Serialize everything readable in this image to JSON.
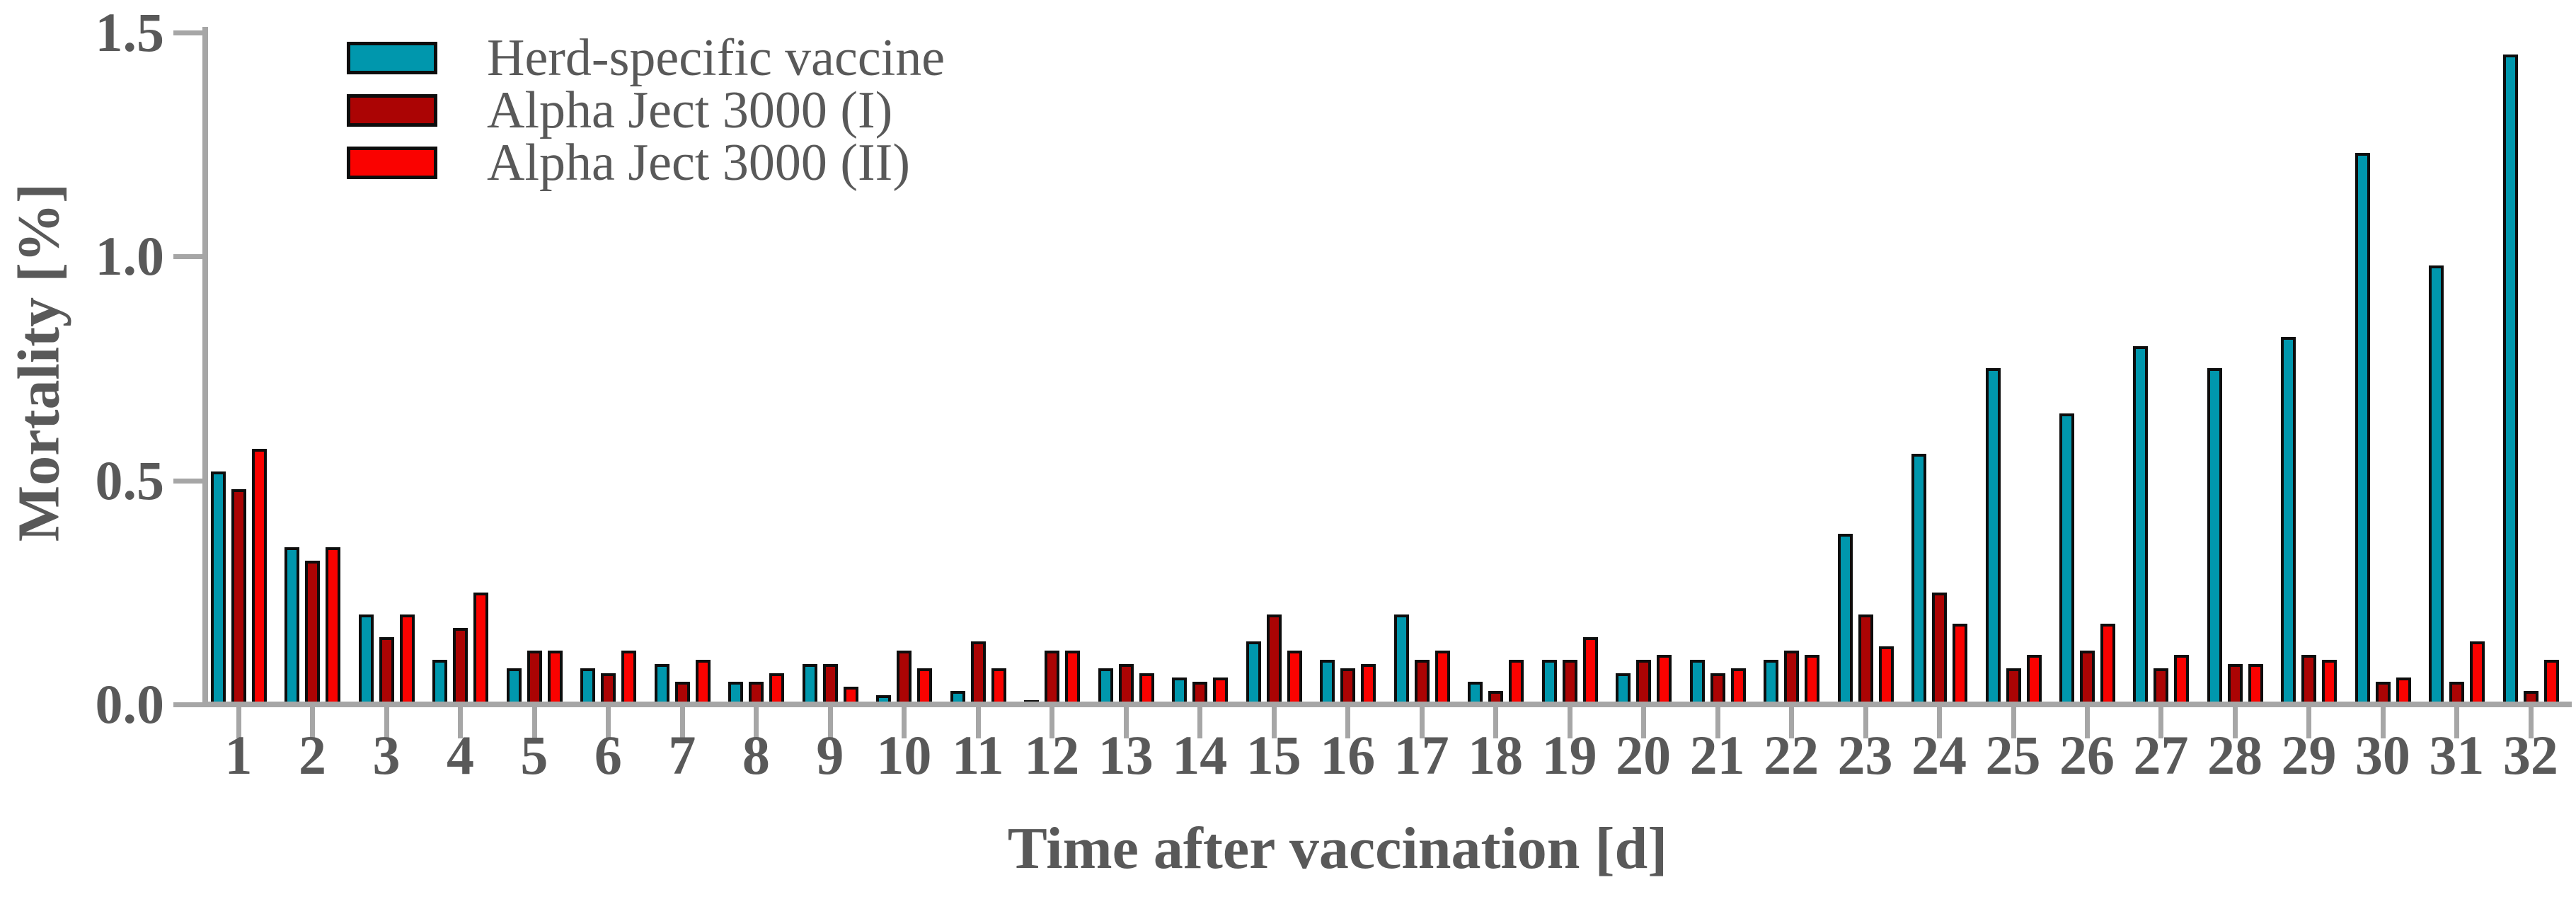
{
  "chart_data": {
    "type": "bar",
    "title": "",
    "xlabel": "Time after vaccination [d]",
    "ylabel": "Mortality [%]",
    "categories": [
      "1",
      "2",
      "3",
      "4",
      "5",
      "6",
      "7",
      "8",
      "9",
      "10",
      "11",
      "12",
      "13",
      "14",
      "15",
      "16",
      "17",
      "18",
      "19",
      "20",
      "21",
      "22",
      "23",
      "24",
      "25",
      "26",
      "27",
      "28",
      "29",
      "30",
      "31",
      "32"
    ],
    "series": [
      {
        "name": "Herd-specific vaccine",
        "color": "#0097ad",
        "values": [
          0.52,
          0.35,
          0.2,
          0.1,
          0.08,
          0.08,
          0.09,
          0.05,
          0.09,
          0.02,
          0.03,
          0.01,
          0.08,
          0.06,
          0.14,
          0.1,
          0.2,
          0.05,
          0.1,
          0.07,
          0.1,
          0.1,
          0.38,
          0.56,
          0.75,
          0.65,
          0.8,
          0.75,
          0.82,
          1.23,
          0.98,
          1.45
        ]
      },
      {
        "name": "Alpha Ject 3000 (I)",
        "color": "#ab0404",
        "values": [
          0.48,
          0.32,
          0.15,
          0.17,
          0.12,
          0.07,
          0.05,
          0.05,
          0.09,
          0.12,
          0.14,
          0.12,
          0.09,
          0.05,
          0.2,
          0.08,
          0.1,
          0.03,
          0.1,
          0.1,
          0.07,
          0.12,
          0.2,
          0.25,
          0.08,
          0.12,
          0.08,
          0.09,
          0.11,
          0.05,
          0.05,
          0.03
        ]
      },
      {
        "name": "Alpha Ject 3000 (II)",
        "color": "#fa0200",
        "values": [
          0.57,
          0.35,
          0.2,
          0.25,
          0.12,
          0.12,
          0.1,
          0.07,
          0.04,
          0.08,
          0.08,
          0.12,
          0.07,
          0.06,
          0.12,
          0.09,
          0.12,
          0.1,
          0.15,
          0.11,
          0.08,
          0.11,
          0.13,
          0.18,
          0.11,
          0.18,
          0.11,
          0.09,
          0.1,
          0.06,
          0.14,
          0.1
        ]
      }
    ],
    "ylim": [
      0,
      1.5
    ],
    "yticks": [
      0.0,
      0.5,
      1.0,
      1.5
    ],
    "ytick_labels": [
      "0.0",
      "0.5",
      "1.0",
      "1.5"
    ],
    "legend_position": "top-left",
    "grid": false,
    "colors": {
      "axis": "#a6a6a6",
      "text": "#595959",
      "bar_border": "#0d0d0d",
      "background": "#ffffff"
    }
  }
}
